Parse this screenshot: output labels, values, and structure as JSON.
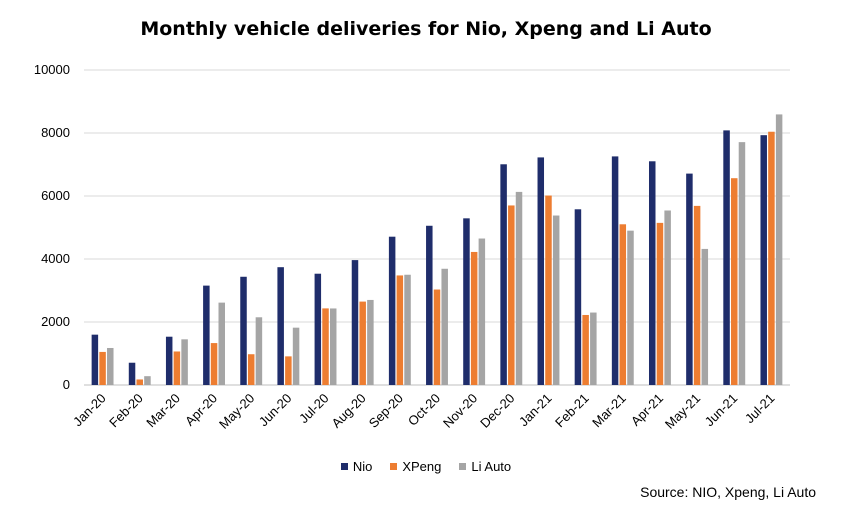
{
  "chart_data": {
    "type": "bar",
    "title": "Monthly vehicle deliveries for Nio, Xpeng and Li Auto",
    "xlabel": "",
    "ylabel": "",
    "ylim": [
      0,
      10000
    ],
    "yticks": [
      0,
      2000,
      4000,
      6000,
      8000,
      10000
    ],
    "ytick_labels": [
      "0",
      "2000",
      "4000",
      "6000",
      "8000",
      "10000"
    ],
    "grid": true,
    "legend_position": "bottom",
    "categories": [
      "Jan-20",
      "Feb-20",
      "Mar-20",
      "Apr-20",
      "May-20",
      "Jun-20",
      "Jul-20",
      "Aug-20",
      "Sep-20",
      "Oct-20",
      "Nov-20",
      "Dec-20",
      "Jan-21",
      "Feb-21",
      "Mar-21",
      "Apr-21",
      "May-21",
      "Jun-21",
      "Jul-21"
    ],
    "series": [
      {
        "name": "Nio",
        "color": "#1f2d6b",
        "values": [
          1598,
          707,
          1533,
          3155,
          3436,
          3740,
          3533,
          3965,
          4708,
          5055,
          5291,
          7007,
          7225,
          5578,
          7257,
          7102,
          6711,
          8083,
          7931
        ]
      },
      {
        "name": "XPeng",
        "color": "#ed7d31",
        "values": [
          1050,
          176,
          1064,
          1331,
          977,
          909,
          2432,
          2648,
          3478,
          3031,
          4224,
          5700,
          6015,
          2223,
          5102,
          5147,
          5686,
          6565,
          8040
        ]
      },
      {
        "name": "Li Auto",
        "color": "#a5a5a5",
        "values": [
          1175,
          280,
          1450,
          2615,
          2150,
          1820,
          2430,
          2700,
          3500,
          3690,
          4650,
          6130,
          5380,
          2300,
          4900,
          5540,
          4320,
          7710,
          8590
        ]
      }
    ]
  },
  "source": "Source: NIO, Xpeng, Li Auto"
}
